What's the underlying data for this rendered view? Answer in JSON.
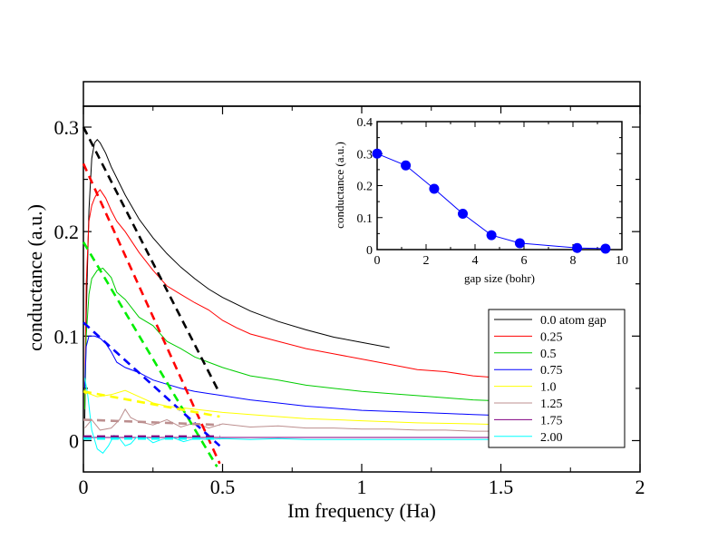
{
  "chart_data": [
    {
      "type": "line",
      "xlabel": "Im frequency (Ha)",
      "ylabel": "conductance (a.u.)",
      "xlim": [
        0,
        2
      ],
      "ylim": [
        -0.03,
        0.32
      ],
      "x_ticks": [
        "0",
        "0.5",
        "1",
        "1.5",
        "2"
      ],
      "y_ticks": [
        "0",
        "0.1",
        "0.2",
        "0.3"
      ],
      "legend_position": "right",
      "series": [
        {
          "name": "0.0 atom gap",
          "color": "#000000",
          "style": "solid",
          "points": [
            [
              0.005,
              0.02
            ],
            [
              0.01,
              0.12
            ],
            [
              0.02,
              0.22
            ],
            [
              0.03,
              0.27
            ],
            [
              0.04,
              0.285
            ],
            [
              0.05,
              0.288
            ],
            [
              0.06,
              0.285
            ],
            [
              0.08,
              0.275
            ],
            [
              0.1,
              0.262
            ],
            [
              0.15,
              0.235
            ],
            [
              0.2,
              0.212
            ],
            [
              0.25,
              0.194
            ],
            [
              0.3,
              0.179
            ],
            [
              0.35,
              0.166
            ],
            [
              0.4,
              0.155
            ],
            [
              0.45,
              0.145
            ],
            [
              0.5,
              0.137
            ],
            [
              0.6,
              0.124
            ],
            [
              0.7,
              0.114
            ],
            [
              0.8,
              0.106
            ],
            [
              0.9,
              0.099
            ],
            [
              1.0,
              0.094
            ],
            [
              1.1,
              0.089
            ]
          ]
        },
        {
          "name": "0.25",
          "color": "#ff0000",
          "style": "solid",
          "points": [
            [
              0.005,
              0.03
            ],
            [
              0.01,
              0.15
            ],
            [
              0.02,
              0.21
            ],
            [
              0.03,
              0.225
            ],
            [
              0.04,
              0.232
            ],
            [
              0.05,
              0.237
            ],
            [
              0.06,
              0.24
            ],
            [
              0.08,
              0.232
            ],
            [
              0.1,
              0.22
            ],
            [
              0.12,
              0.21
            ],
            [
              0.15,
              0.2
            ],
            [
              0.2,
              0.18
            ],
            [
              0.25,
              0.163
            ],
            [
              0.3,
              0.148
            ],
            [
              0.35,
              0.14
            ],
            [
              0.4,
              0.132
            ],
            [
              0.45,
              0.125
            ],
            [
              0.5,
              0.115
            ],
            [
              0.55,
              0.108
            ],
            [
              0.6,
              0.102
            ],
            [
              0.7,
              0.095
            ],
            [
              0.8,
              0.088
            ],
            [
              0.9,
              0.083
            ],
            [
              1.0,
              0.078
            ],
            [
              1.1,
              0.073
            ],
            [
              1.2,
              0.068
            ],
            [
              1.3,
              0.066
            ],
            [
              1.4,
              0.062
            ],
            [
              1.5,
              0.06
            ],
            [
              1.55,
              0.058
            ]
          ]
        },
        {
          "name": "0.5",
          "color": "#00cc00",
          "style": "solid",
          "points": [
            [
              0.005,
              0.03
            ],
            [
              0.01,
              0.1
            ],
            [
              0.02,
              0.14
            ],
            [
              0.03,
              0.155
            ],
            [
              0.05,
              0.163
            ],
            [
              0.07,
              0.165
            ],
            [
              0.1,
              0.156
            ],
            [
              0.12,
              0.142
            ],
            [
              0.15,
              0.135
            ],
            [
              0.2,
              0.118
            ],
            [
              0.25,
              0.11
            ],
            [
              0.3,
              0.095
            ],
            [
              0.35,
              0.088
            ],
            [
              0.4,
              0.08
            ],
            [
              0.45,
              0.075
            ],
            [
              0.5,
              0.07
            ],
            [
              0.6,
              0.062
            ],
            [
              0.7,
              0.058
            ],
            [
              0.8,
              0.053
            ],
            [
              0.9,
              0.05
            ],
            [
              1.0,
              0.047
            ],
            [
              1.1,
              0.045
            ],
            [
              1.2,
              0.043
            ],
            [
              1.3,
              0.041
            ],
            [
              1.4,
              0.039
            ],
            [
              1.5,
              0.038
            ],
            [
              1.55,
              0.037
            ]
          ]
        },
        {
          "name": "0.75",
          "color": "#0000ff",
          "style": "solid",
          "points": [
            [
              0.005,
              0.05
            ],
            [
              0.01,
              0.09
            ],
            [
              0.02,
              0.1
            ],
            [
              0.04,
              0.1
            ],
            [
              0.06,
              0.098
            ],
            [
              0.08,
              0.093
            ],
            [
              0.1,
              0.085
            ],
            [
              0.12,
              0.075
            ],
            [
              0.15,
              0.07
            ],
            [
              0.2,
              0.065
            ],
            [
              0.25,
              0.058
            ],
            [
              0.3,
              0.054
            ],
            [
              0.35,
              0.05
            ],
            [
              0.4,
              0.047
            ],
            [
              0.45,
              0.045
            ],
            [
              0.5,
              0.043
            ],
            [
              0.6,
              0.039
            ],
            [
              0.7,
              0.036
            ],
            [
              0.8,
              0.033
            ],
            [
              0.9,
              0.031
            ],
            [
              1.0,
              0.029
            ],
            [
              1.1,
              0.028
            ],
            [
              1.2,
              0.027
            ],
            [
              1.3,
              0.026
            ],
            [
              1.4,
              0.025
            ],
            [
              1.5,
              0.024
            ],
            [
              1.55,
              0.024
            ]
          ]
        },
        {
          "name": "1.0",
          "color": "#ffff00",
          "style": "solid",
          "points": [
            [
              0.005,
              0.045
            ],
            [
              0.02,
              0.045
            ],
            [
              0.05,
              0.042
            ],
            [
              0.1,
              0.044
            ],
            [
              0.15,
              0.048
            ],
            [
              0.2,
              0.042
            ],
            [
              0.25,
              0.036
            ],
            [
              0.3,
              0.033
            ],
            [
              0.4,
              0.03
            ],
            [
              0.5,
              0.027
            ],
            [
              0.6,
              0.025
            ],
            [
              0.7,
              0.023
            ],
            [
              0.8,
              0.021
            ],
            [
              0.9,
              0.02
            ],
            [
              1.0,
              0.019
            ],
            [
              1.2,
              0.017
            ],
            [
              1.4,
              0.016
            ],
            [
              1.55,
              0.015
            ]
          ]
        },
        {
          "name": "1.25",
          "color": "#bc8f8f",
          "style": "solid",
          "points": [
            [
              0.005,
              0.012
            ],
            [
              0.03,
              0.02
            ],
            [
              0.06,
              0.01
            ],
            [
              0.1,
              0.012
            ],
            [
              0.13,
              0.02
            ],
            [
              0.15,
              0.03
            ],
            [
              0.17,
              0.022
            ],
            [
              0.2,
              0.018
            ],
            [
              0.25,
              0.015
            ],
            [
              0.3,
              0.02
            ],
            [
              0.35,
              0.013
            ],
            [
              0.4,
              0.017
            ],
            [
              0.45,
              0.012
            ],
            [
              0.5,
              0.016
            ],
            [
              0.6,
              0.013
            ],
            [
              0.7,
              0.014
            ],
            [
              0.8,
              0.012
            ],
            [
              0.9,
              0.012
            ],
            [
              1.0,
              0.011
            ],
            [
              1.1,
              0.011
            ],
            [
              1.2,
              0.01
            ],
            [
              1.3,
              0.01
            ],
            [
              1.4,
              0.009
            ],
            [
              1.55,
              0.009
            ]
          ]
        },
        {
          "name": "1.75",
          "color": "#800080",
          "style": "solid",
          "points": [
            [
              0.005,
              0.003
            ],
            [
              0.1,
              0.003
            ],
            [
              0.3,
              0.003
            ],
            [
              0.5,
              0.003
            ],
            [
              0.8,
              0.003
            ],
            [
              1.0,
              0.003
            ],
            [
              1.3,
              0.003
            ],
            [
              1.55,
              0.003
            ]
          ]
        },
        {
          "name": "2.00",
          "color": "#00ffff",
          "style": "solid",
          "points": [
            [
              0.005,
              0.06
            ],
            [
              0.015,
              0.045
            ],
            [
              0.03,
              0.01
            ],
            [
              0.05,
              -0.008
            ],
            [
              0.07,
              -0.012
            ],
            [
              0.09,
              -0.005
            ],
            [
              0.11,
              0.005
            ],
            [
              0.13,
              0.002
            ],
            [
              0.15,
              -0.005
            ],
            [
              0.17,
              -0.003
            ],
            [
              0.19,
              0.003
            ],
            [
              0.22,
              0.004
            ],
            [
              0.25,
              -0.002
            ],
            [
              0.28,
              0.001
            ],
            [
              0.32,
              0.003
            ],
            [
              0.36,
              -0.001
            ],
            [
              0.4,
              0.002
            ],
            [
              0.45,
              0.001
            ],
            [
              0.5,
              0.002
            ],
            [
              0.6,
              0.001
            ],
            [
              0.7,
              0.002
            ],
            [
              0.8,
              0.001
            ],
            [
              1.0,
              0.001
            ],
            [
              1.2,
              0.001
            ],
            [
              1.4,
              0.001
            ],
            [
              1.55,
              0.001
            ]
          ]
        },
        {
          "name": "",
          "color": "#000000",
          "style": "dashed",
          "points": [
            [
              0,
              0.3
            ],
            [
              0.49,
              0.045
            ]
          ]
        },
        {
          "name": "",
          "color": "#ff0000",
          "style": "dashed",
          "points": [
            [
              0,
              0.265
            ],
            [
              0.49,
              -0.022
            ]
          ]
        },
        {
          "name": "",
          "color": "#00ee00",
          "style": "dashed",
          "points": [
            [
              0,
              0.19
            ],
            [
              0.48,
              -0.025
            ]
          ]
        },
        {
          "name": "",
          "color": "#0000ff",
          "style": "dashed",
          "points": [
            [
              0,
              0.113
            ],
            [
              0.49,
              -0.005
            ]
          ]
        },
        {
          "name": "",
          "color": "#ffff00",
          "style": "dashed",
          "points": [
            [
              0,
              0.047
            ],
            [
              0.49,
              0.023
            ]
          ]
        },
        {
          "name": "",
          "color": "#bc8f8f",
          "style": "dashed",
          "points": [
            [
              0,
              0.02
            ],
            [
              0.49,
              0.015
            ]
          ]
        },
        {
          "name": "",
          "color": "#800080",
          "style": "dashed",
          "points": [
            [
              0,
              0.004
            ],
            [
              0.49,
              0.004
            ]
          ]
        },
        {
          "name": "",
          "color": "#00ffff",
          "style": "dashed",
          "points": [
            [
              0,
              0.002
            ],
            [
              0.49,
              0.002
            ]
          ]
        }
      ]
    },
    {
      "type": "line",
      "xlabel": "gap size (bohr)",
      "ylabel": "conductance (a.u.)",
      "xlim": [
        0,
        10
      ],
      "ylim": [
        0,
        0.4
      ],
      "x_ticks": [
        "0",
        "2",
        "4",
        "6",
        "8",
        "10"
      ],
      "y_ticks": [
        "0",
        "0.1",
        "0.2",
        "0.3",
        "0.4"
      ],
      "marker": "circle",
      "color": "#0000ff",
      "x": [
        0,
        1.17,
        2.33,
        3.5,
        4.67,
        5.83,
        8.17,
        9.33
      ],
      "y": [
        0.3,
        0.263,
        0.19,
        0.112,
        0.045,
        0.02,
        0.005,
        0.003
      ]
    }
  ]
}
